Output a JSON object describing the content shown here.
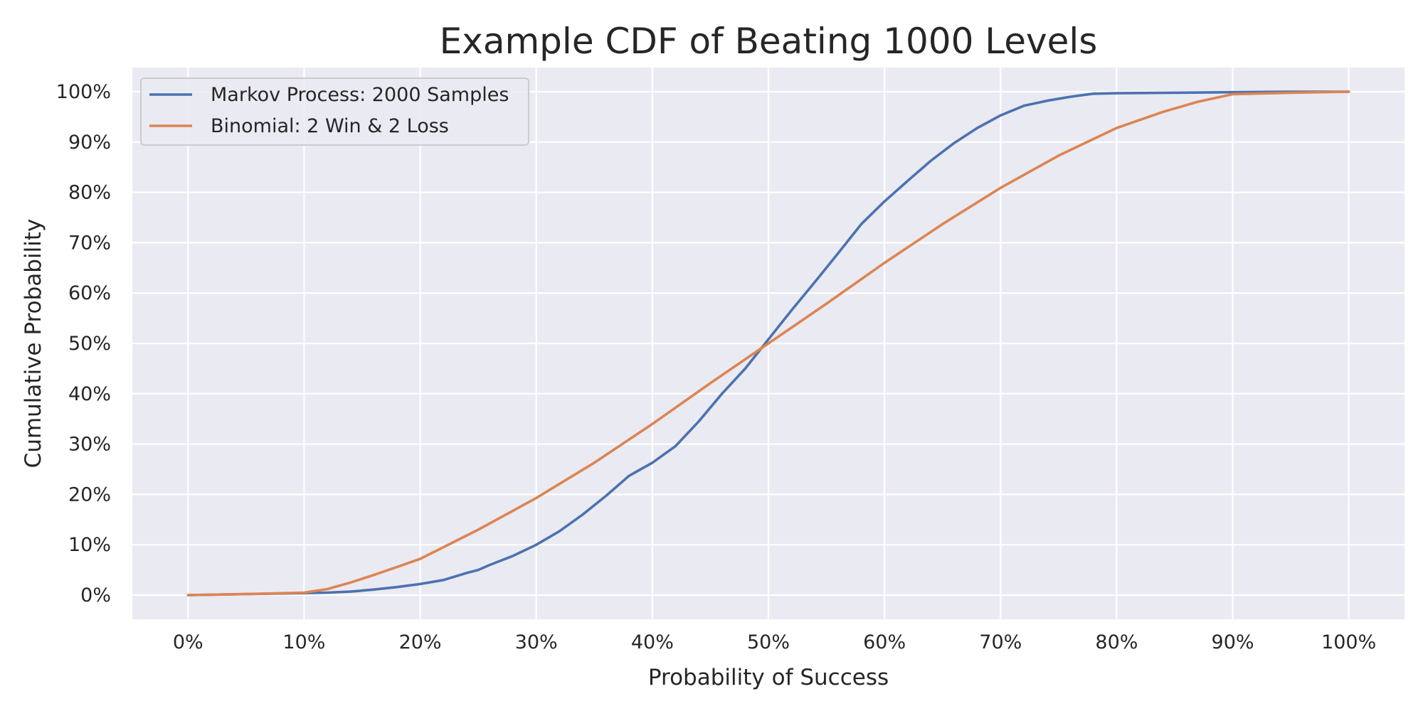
{
  "chart_data": {
    "type": "line",
    "title": "Example CDF of Beating 1000 Levels",
    "xlabel": "Probability of Success",
    "ylabel": "Cumulative Probability",
    "xlim": [
      -0.048,
      1.048
    ],
    "ylim": [
      -0.048,
      1.048
    ],
    "x_ticks": [
      0,
      0.1,
      0.2,
      0.3,
      0.4,
      0.5,
      0.6,
      0.7,
      0.8,
      0.9,
      1.0
    ],
    "x_tick_labels": [
      "0%",
      "10%",
      "20%",
      "30%",
      "40%",
      "50%",
      "60%",
      "70%",
      "80%",
      "90%",
      "100%"
    ],
    "y_ticks": [
      0,
      0.1,
      0.2,
      0.3,
      0.4,
      0.5,
      0.6,
      0.7,
      0.8,
      0.9,
      1.0
    ],
    "y_tick_labels": [
      "0%",
      "10%",
      "20%",
      "30%",
      "40%",
      "50%",
      "60%",
      "70%",
      "80%",
      "90%",
      "100%"
    ],
    "grid": true,
    "legend_position": "upper-left",
    "background_color": "#eaeaf2",
    "grid_color": "#ffffff",
    "series": [
      {
        "name": "Markov Process: 2000 Samples",
        "color": "#4c72b0",
        "x": [
          0.0,
          0.05,
          0.1,
          0.12,
          0.14,
          0.16,
          0.18,
          0.2,
          0.22,
          0.24,
          0.25,
          0.26,
          0.28,
          0.3,
          0.32,
          0.34,
          0.36,
          0.38,
          0.4,
          0.42,
          0.44,
          0.46,
          0.48,
          0.5,
          0.52,
          0.54,
          0.56,
          0.58,
          0.6,
          0.62,
          0.64,
          0.66,
          0.68,
          0.7,
          0.72,
          0.74,
          0.76,
          0.78,
          0.8,
          0.85,
          0.9,
          0.95,
          1.0
        ],
        "y": [
          0.0,
          0.002,
          0.004,
          0.005,
          0.007,
          0.011,
          0.016,
          0.022,
          0.03,
          0.044,
          0.05,
          0.06,
          0.078,
          0.1,
          0.127,
          0.16,
          0.197,
          0.237,
          0.263,
          0.296,
          0.345,
          0.4,
          0.45,
          0.508,
          0.566,
          0.622,
          0.679,
          0.737,
          0.782,
          0.823,
          0.863,
          0.898,
          0.928,
          0.953,
          0.972,
          0.982,
          0.99,
          0.996,
          0.997,
          0.998,
          0.999,
          1.0,
          1.0
        ]
      },
      {
        "name": "Binomial: 2 Win & 2 Loss",
        "color": "#dd8452",
        "x": [
          0.0,
          0.05,
          0.1,
          0.12,
          0.14,
          0.16,
          0.18,
          0.2,
          0.25,
          0.3,
          0.35,
          0.4,
          0.45,
          0.5,
          0.55,
          0.6,
          0.65,
          0.7,
          0.75,
          0.8,
          0.84,
          0.87,
          0.9,
          0.95,
          1.0
        ],
        "y": [
          0.0,
          0.002,
          0.005,
          0.012,
          0.025,
          0.04,
          0.056,
          0.072,
          0.13,
          0.193,
          0.263,
          0.34,
          0.421,
          0.5,
          0.579,
          0.66,
          0.737,
          0.809,
          0.873,
          0.928,
          0.96,
          0.98,
          0.995,
          0.998,
          1.0
        ]
      }
    ]
  }
}
